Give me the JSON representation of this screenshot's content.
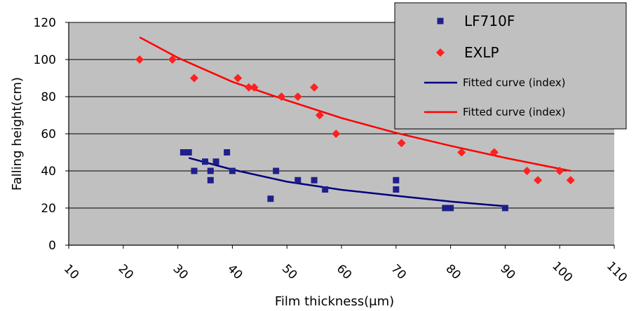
{
  "chart_data": {
    "type": "scatter",
    "xlabel": "Film thickness(μm)",
    "ylabel": "Falling height(cm)",
    "xlim": [
      10,
      110
    ],
    "ylim": [
      0,
      120
    ],
    "xticks": [
      "10",
      "20",
      "30",
      "40",
      "50",
      "60",
      "70",
      "80",
      "90",
      "100",
      "110"
    ],
    "yticks": [
      "0",
      "20",
      "40",
      "60",
      "80",
      "100",
      "120"
    ],
    "grid": true,
    "background": "#c0c0c0",
    "legend_position": "top-right",
    "series": [
      {
        "name": "LF710F",
        "marker": "square",
        "color": "#1f1f8c",
        "x": [
          31,
          32,
          33,
          35,
          36,
          36,
          37,
          39,
          40,
          47,
          48,
          52,
          55,
          57,
          70,
          70,
          79,
          80,
          90
        ],
        "y": [
          50,
          50,
          40,
          45,
          40,
          35,
          45,
          50,
          40,
          25,
          40,
          35,
          35,
          30,
          35,
          30,
          20,
          20,
          20
        ]
      },
      {
        "name": "EXLP",
        "marker": "diamond",
        "color": "#ff2020",
        "x": [
          23,
          29,
          33,
          41,
          43,
          44,
          49,
          52,
          55,
          56,
          59,
          71,
          82,
          88,
          94,
          96,
          100,
          102
        ],
        "y": [
          100,
          100,
          90,
          90,
          85,
          85,
          80,
          80,
          85,
          70,
          60,
          55,
          50,
          50,
          40,
          35,
          40,
          35
        ]
      }
    ],
    "fitted_curves": [
      {
        "name": "Fitted curve (index)",
        "color": "#00007f",
        "x_range": [
          32,
          90
        ],
        "x": [
          32,
          40,
          50,
          60,
          70,
          80,
          90
        ],
        "y": [
          47,
          40.7,
          34.2,
          29.8,
          26.6,
          23.5,
          21
        ]
      },
      {
        "name": "Fitted curve (index)",
        "color": "#ff0000",
        "x_range": [
          23,
          102
        ],
        "x": [
          23,
          30,
          40,
          50,
          60,
          70,
          80,
          90,
          102
        ],
        "y": [
          112,
          101,
          88,
          78,
          68.5,
          60.5,
          53.5,
          47,
          40
        ]
      }
    ]
  }
}
